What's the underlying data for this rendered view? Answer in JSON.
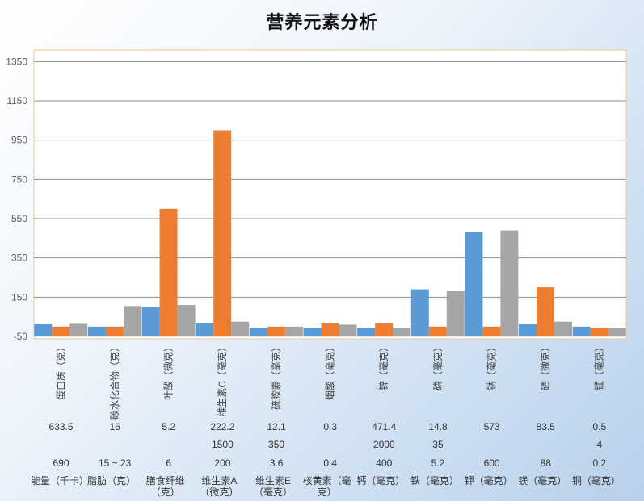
{
  "chart_data": {
    "type": "bar",
    "title": "营养元素分析",
    "xlabel": "",
    "ylabel": "",
    "ylim": [
      -50,
      1450
    ],
    "yticks": [
      -50,
      150,
      350,
      550,
      750,
      950,
      1150,
      1350
    ],
    "grid": true,
    "legend": "none",
    "categories": [
      "蛋白质（克）",
      "碳水化合物（克）",
      "叶酸（微克）",
      "维生素C（毫克）",
      "硫胺素（毫克）",
      "烟酸（毫克）",
      "锌（毫克）",
      "磷（毫克）",
      "钠（毫克）",
      "硒（微克）",
      "锰（毫克）"
    ],
    "series": [
      {
        "color": "#5b9bd5",
        "values": [
          15,
          0,
          100,
          20,
          -5,
          -5,
          -5,
          190,
          480,
          15,
          0
        ]
      },
      {
        "color": "#ed7d31",
        "values": [
          0,
          0,
          600,
          1000,
          0,
          20,
          20,
          0,
          0,
          200,
          -5
        ]
      },
      {
        "color": "#a5a5a5",
        "values": [
          18,
          105,
          110,
          25,
          0,
          10,
          -5,
          180,
          490,
          25,
          -5
        ]
      }
    ]
  },
  "table": {
    "rows": [
      [
        "633.5",
        "16",
        "5.2",
        "222.2",
        "12.1",
        "0.3",
        "471.4",
        "14.8",
        "573",
        "83.5",
        "0.5"
      ],
      [
        "",
        "",
        "",
        "1500",
        "350",
        "",
        "2000",
        "35",
        "",
        "",
        "4"
      ],
      [
        "690",
        "15 ~ 23",
        "6",
        "200",
        "3.6",
        "0.4",
        "400",
        "5.2",
        "600",
        "88",
        "0.2"
      ]
    ],
    "labels": [
      "能量（千卡）",
      "脂肪（克）",
      "膳食纤维（克）",
      "维生素A（微克）",
      "维生素E（毫克）",
      "核黄素（毫克）",
      "钙（毫克）",
      "铁（毫克）",
      "钾（毫克）",
      "镁（毫克）",
      "铜（毫克）"
    ]
  }
}
